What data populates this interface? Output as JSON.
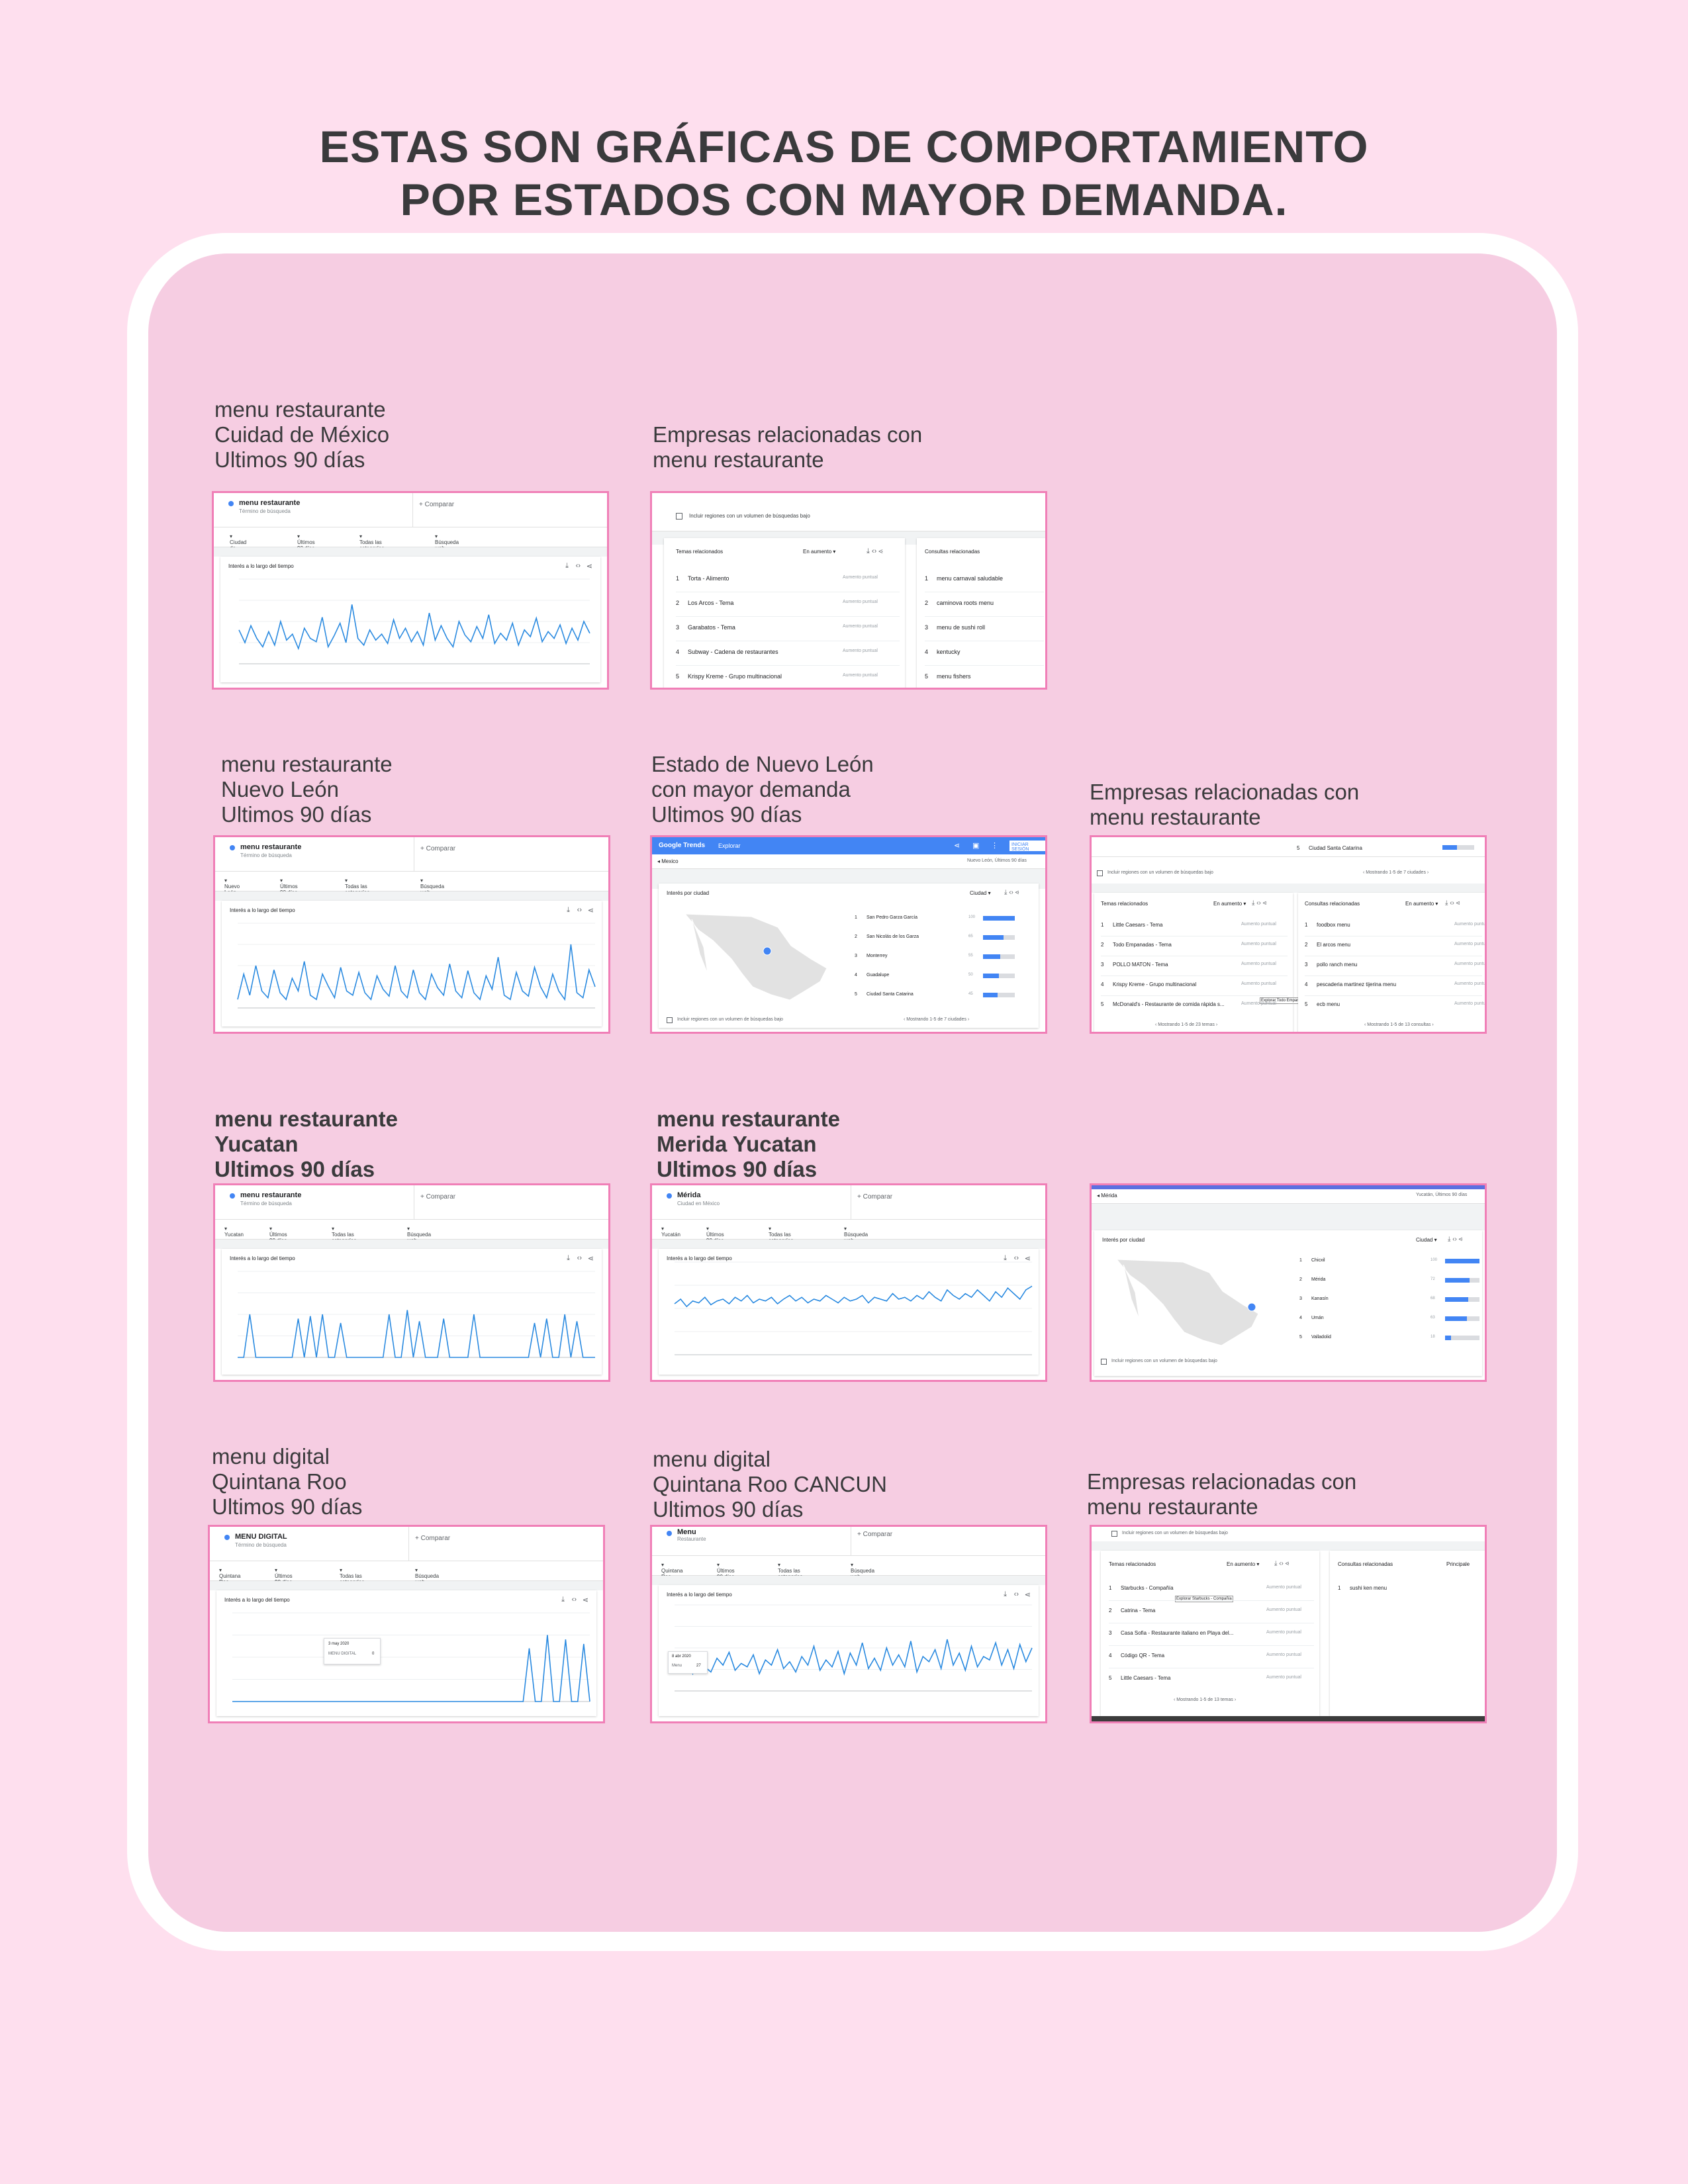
{
  "title": {
    "line1": "ESTAS SON GRÁFICAS DE COMPORTAMIENTO",
    "line2": "POR ESTADOS CON MAYOR DEMANDA."
  },
  "captions": {
    "c1": [
      "menu restaurante",
      "Cuidad de México",
      "Ultimos 90 días"
    ],
    "c2": [
      "Empresas relacionadas con",
      "menu restaurante"
    ],
    "c3": [
      "menu restaurante",
      "Nuevo León",
      "Ultimos 90 días"
    ],
    "c4": [
      "Estado de Nuevo León",
      "con mayor demanda",
      "Ultimos 90 días"
    ],
    "c5": [
      "Empresas relacionadas con",
      "menu restaurante"
    ],
    "c6": [
      "menu restaurante",
      "Yucatan",
      "Ultimos 90 días"
    ],
    "c7": [
      "menu restaurante",
      "Merida Yucatan",
      "Ultimos 90 días"
    ],
    "c8": [
      "menu digital",
      "Quintana Roo",
      "Ultimos 90 días"
    ],
    "c9": [
      "menu digital",
      "Quintana Roo CANCUN",
      "Ultimos 90 días"
    ],
    "c10": [
      "Empresas relacionadas con",
      "menu restaurante"
    ]
  },
  "ui": {
    "compare": "Comparar",
    "search_term_sub": "Término de búsqueda",
    "interest_over_time": "Interés a lo largo del tiempo",
    "interest_by_city": "Interés por ciudad",
    "last90": "Últimos 90 días",
    "all_categories": "Todas las categorías",
    "web_search": "Búsqueda web",
    "include_low": "Incluir regiones con un volumen de búsquedas bajo",
    "related_topics": "Temas relacionados",
    "related_queries": "Consultas relacionadas",
    "rising": "En aumento",
    "city": "Ciudad",
    "breakout": "Aumento puntual",
    "explore": "Explorar",
    "google_trends": "Google Trends"
  },
  "s1": {
    "term": "menu restaurante",
    "region": "Ciudad de México",
    "series": [
      40,
      25,
      45,
      30,
      20,
      38,
      22,
      50,
      28,
      35,
      18,
      42,
      30,
      26,
      55,
      20,
      33,
      48,
      25,
      70,
      30,
      22,
      40,
      28,
      35,
      24,
      52,
      30,
      42,
      26,
      38,
      22,
      60,
      28,
      45,
      30,
      20,
      50,
      34,
      26,
      44,
      30,
      58,
      24,
      36,
      28,
      48,
      22,
      40,
      32,
      54,
      26,
      38,
      30,
      46,
      24,
      42,
      28,
      50,
      36
    ]
  },
  "s2": {
    "topics": [
      "Torta - Alimento",
      "Los Arcos - Tema",
      "Garabatos - Tema",
      "Subway - Cadena de restaurantes",
      "Krispy Kreme - Grupo multinacional"
    ],
    "queries": [
      "menu carnaval saludable",
      "caminova roots menu",
      "menu de sushi roll",
      "kentucky",
      "menu fishers"
    ]
  },
  "s3": {
    "term": "menu restaurante",
    "region": "Nuevo León",
    "series": [
      10,
      40,
      15,
      50,
      20,
      12,
      45,
      18,
      10,
      35,
      20,
      55,
      15,
      10,
      40,
      25,
      12,
      48,
      20,
      15,
      42,
      18,
      10,
      38,
      22,
      14,
      50,
      20,
      12,
      45,
      18,
      10,
      40,
      24,
      15,
      52,
      20,
      12,
      44,
      18,
      10,
      38,
      22,
      60,
      15,
      10,
      42,
      20,
      14,
      48,
      25,
      12,
      40,
      20,
      10,
      75,
      18,
      12,
      45,
      25
    ]
  },
  "s4": {
    "region_label": "Mexico",
    "header_right": "Nuevo León, Últimos 90 días",
    "cities": [
      "San Pedro Garza García",
      "San Nicolás de los Garza",
      "Monterrey",
      "Guadalupe",
      "Ciudad Santa Catarina"
    ],
    "values": [
      100,
      65,
      55,
      50,
      45
    ]
  },
  "s5": {
    "top_city": "Ciudad Santa Catarina",
    "topics": [
      "Little Caesars - Tema",
      "Todo Empanadas - Tema",
      "POLLO MATON - Tema",
      "Krispy Kreme - Grupo multinacional",
      "McDonald's - Restaurante de comida rápida s..."
    ],
    "queries": [
      "foodbox menu",
      "El arcos menu",
      "pollo ranch menu",
      "pescaderia martinez tijerina menu",
      "ecb menu"
    ],
    "showing_topics": "Mostrando 1-5 de 23 temas",
    "showing_queries": "Mostrando 1-5 de 13 consultas",
    "showing_cities": "Mostrando 1-5 de 7 ciudades",
    "tooltip": "Explorar Todo Empanadas - Tema"
  },
  "s6": {
    "term": "menu restaurante",
    "region": "Yucatan",
    "series": [
      0,
      0,
      50,
      0,
      0,
      0,
      0,
      0,
      0,
      0,
      45,
      0,
      48,
      0,
      50,
      0,
      0,
      40,
      0,
      0,
      0,
      0,
      0,
      0,
      0,
      50,
      0,
      0,
      55,
      0,
      42,
      0,
      0,
      0,
      45,
      0,
      0,
      0,
      0,
      50,
      0,
      0,
      0,
      0,
      0,
      0,
      0,
      0,
      0,
      40,
      0,
      45,
      0,
      0,
      50,
      0,
      42,
      0,
      0,
      0
    ]
  },
  "s7": {
    "term": "Mérida",
    "sub": "Ciudad en México",
    "region": "Yucatán",
    "series": [
      55,
      60,
      52,
      58,
      56,
      62,
      54,
      58,
      60,
      55,
      62,
      58,
      64,
      56,
      60,
      58,
      62,
      55,
      60,
      64,
      58,
      62,
      56,
      60,
      58,
      64,
      60,
      56,
      62,
      58,
      60,
      64,
      56,
      62,
      60,
      58,
      66,
      60,
      62,
      58,
      64,
      60,
      68,
      62,
      58,
      70,
      64,
      60,
      66,
      62,
      70,
      64,
      58,
      68,
      62,
      72,
      66,
      60,
      70,
      74
    ]
  },
  "s8": {
    "region_header": "Mérida",
    "header_right": "Yucatán, Últimos 90 días",
    "cities": [
      "Chicxil",
      "Mérida",
      "Kanasín",
      "Umán",
      "Valladolid"
    ],
    "values": [
      100,
      72,
      68,
      63,
      18
    ]
  },
  "s9": {
    "term": "MENU DIGITAL",
    "region": "Quintana Roo",
    "tooltip_date": "3 may 2020",
    "tooltip_label": "MENU DIGITAL",
    "tooltip_value": "0",
    "series": [
      0,
      0,
      0,
      0,
      0,
      0,
      0,
      0,
      0,
      0,
      0,
      0,
      0,
      0,
      0,
      0,
      0,
      0,
      0,
      0,
      0,
      0,
      0,
      0,
      0,
      0,
      0,
      0,
      0,
      0,
      0,
      0,
      0,
      0,
      0,
      0,
      0,
      0,
      0,
      0,
      0,
      0,
      0,
      0,
      0,
      0,
      0,
      0,
      0,
      60,
      0,
      0,
      75,
      0,
      0,
      70,
      0,
      0,
      65,
      0
    ]
  },
  "s10": {
    "term": "Menu",
    "sub": "Restaurante",
    "region": "Quintana Roo",
    "tooltip_date": "8 abr 2020",
    "tooltip_label": "Menu",
    "tooltip_value": "27",
    "series": [
      30,
      25,
      35,
      20,
      40,
      28,
      22,
      38,
      30,
      45,
      24,
      32,
      28,
      42,
      20,
      36,
      30,
      48,
      26,
      34,
      22,
      40,
      30,
      52,
      24,
      36,
      28,
      46,
      20,
      44,
      30,
      56,
      26,
      38,
      24,
      50,
      30,
      42,
      28,
      58,
      22,
      40,
      34,
      48,
      26,
      60,
      30,
      44,
      24,
      52,
      28,
      40,
      36,
      56,
      30,
      48,
      26,
      54,
      34,
      50
    ]
  },
  "s11": {
    "topics": [
      "Starbucks - Compañía",
      "Catrina - Tema",
      "Casa Sofia - Restaurante italiano en Playa del...",
      "Código QR - Tema",
      "Little Caesars - Tema"
    ],
    "queries": [
      "sushi ken menu"
    ],
    "showing_topics": "Mostrando 1-5 de 13 temas",
    "tooltip": "Explorar Starbucks - Compañía",
    "principal": "Principale"
  }
}
